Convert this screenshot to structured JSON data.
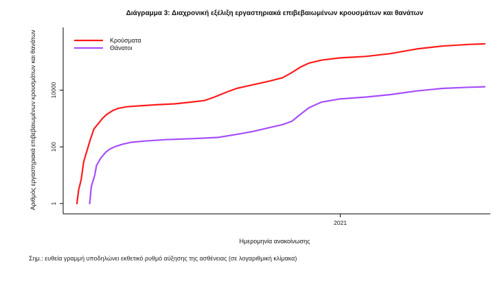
{
  "chart_data": {
    "type": "line",
    "title": "Διάγραμμα 3: Διαχρονική εξέλιξη εργαστηριακά επιβεβαιωμένων κρουσμάτων και θανάτων",
    "xlabel": "Ημερομηνία ανακοίνωσης",
    "ylabel": "Αριθμός εργαστηριακά επιβεβαιωμένων κρουσμάτων και θανάτων",
    "yscale": "log10",
    "ylim": [
      1,
      600000
    ],
    "yticks": [
      1,
      100,
      10000
    ],
    "ytick_labels": [
      "1",
      "100",
      "10000"
    ],
    "xlim": [
      "2020-02-26",
      "2021-06-20"
    ],
    "xticks": [
      "2021-01-01"
    ],
    "xtick_labels": [
      "2021"
    ],
    "legend_position": "top-left",
    "grid": false,
    "series": [
      {
        "name": "Κρούσματα",
        "color": "#ff1a1a",
        "points": [
          [
            "2020-02-26",
            1
          ],
          [
            "2020-02-28",
            3
          ],
          [
            "2020-03-02",
            7
          ],
          [
            "2020-03-05",
            30
          ],
          [
            "2020-03-09",
            75
          ],
          [
            "2020-03-13",
            190
          ],
          [
            "2020-03-17",
            430
          ],
          [
            "2020-03-22",
            650
          ],
          [
            "2020-03-27",
            1000
          ],
          [
            "2020-04-01",
            1400
          ],
          [
            "2020-04-08",
            1900
          ],
          [
            "2020-04-15",
            2300
          ],
          [
            "2020-04-25",
            2600
          ],
          [
            "2020-05-10",
            2800
          ],
          [
            "2020-06-01",
            3100
          ],
          [
            "2020-06-20",
            3300
          ],
          [
            "2020-07-10",
            3800
          ],
          [
            "2020-07-25",
            4300
          ],
          [
            "2020-08-05",
            5600
          ],
          [
            "2020-08-20",
            8500
          ],
          [
            "2020-09-01",
            11500
          ],
          [
            "2020-09-20",
            15500
          ],
          [
            "2020-10-10",
            21000
          ],
          [
            "2020-10-25",
            27500
          ],
          [
            "2020-11-05",
            42000
          ],
          [
            "2020-11-15",
            65000
          ],
          [
            "2020-11-25",
            90000
          ],
          [
            "2020-12-10",
            115000
          ],
          [
            "2020-12-31",
            137000
          ],
          [
            "2021-01-31",
            155000
          ],
          [
            "2021-03-01",
            195000
          ],
          [
            "2021-04-01",
            285000
          ],
          [
            "2021-05-01",
            360000
          ],
          [
            "2021-06-01",
            410000
          ],
          [
            "2021-06-20",
            430000
          ]
        ]
      },
      {
        "name": "Θάνατοι",
        "color": "#a64dff",
        "points": [
          [
            "2020-03-12",
            1
          ],
          [
            "2020-03-14",
            4
          ],
          [
            "2020-03-18",
            10
          ],
          [
            "2020-03-20",
            22
          ],
          [
            "2020-03-25",
            40
          ],
          [
            "2020-03-31",
            65
          ],
          [
            "2020-04-05",
            85
          ],
          [
            "2020-04-12",
            105
          ],
          [
            "2020-04-20",
            125
          ],
          [
            "2020-04-30",
            145
          ],
          [
            "2020-05-15",
            160
          ],
          [
            "2020-06-10",
            180
          ],
          [
            "2020-07-10",
            195
          ],
          [
            "2020-08-10",
            215
          ],
          [
            "2020-09-01",
            275
          ],
          [
            "2020-09-20",
            350
          ],
          [
            "2020-10-10",
            480
          ],
          [
            "2020-10-25",
            610
          ],
          [
            "2020-11-05",
            800
          ],
          [
            "2020-11-15",
            1400
          ],
          [
            "2020-11-25",
            2400
          ],
          [
            "2020-12-10",
            3800
          ],
          [
            "2020-12-31",
            4900
          ],
          [
            "2021-01-31",
            5700
          ],
          [
            "2021-03-01",
            7000
          ],
          [
            "2021-04-01",
            9400
          ],
          [
            "2021-05-01",
            11500
          ],
          [
            "2021-06-01",
            12700
          ],
          [
            "2021-06-20",
            13200
          ]
        ]
      }
    ]
  },
  "note": "Σημ.: ευθεία γραμμή υποδηλώνει εκθετικό ρυθμό αύξησης της ασθένειας (σε λογαριθμική κλίμακα)"
}
